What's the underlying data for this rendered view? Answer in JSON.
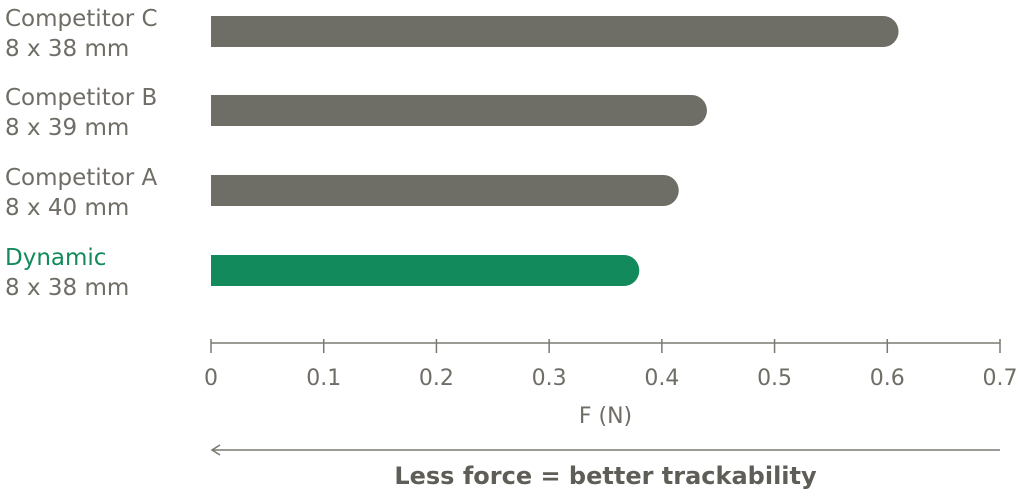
{
  "chart_data": {
    "type": "bar",
    "orientation": "horizontal",
    "categories": [
      {
        "name": "Competitor C",
        "size": "8 x 38 mm",
        "highlight": false
      },
      {
        "name": "Competitor B",
        "size": "8 x 39 mm",
        "highlight": false
      },
      {
        "name": "Competitor A",
        "size": "8 x 40 mm",
        "highlight": false
      },
      {
        "name": "Dynamic",
        "size": "8 x 38 mm",
        "highlight": true
      }
    ],
    "values": [
      0.61,
      0.44,
      0.415,
      0.38
    ],
    "xlabel": "F (N)",
    "xlim": [
      0,
      0.7
    ],
    "xticks": [
      "0",
      "0.1",
      "0.2",
      "0.3",
      "0.4",
      "0.5",
      "0.6",
      "0.7"
    ],
    "grid": false,
    "annotation": "Less force = better trackability"
  },
  "colors": {
    "bar": "#6f6e66",
    "highlight": "#138a5b",
    "category_text": "#6f6d66",
    "axis": "#7a7870"
  }
}
